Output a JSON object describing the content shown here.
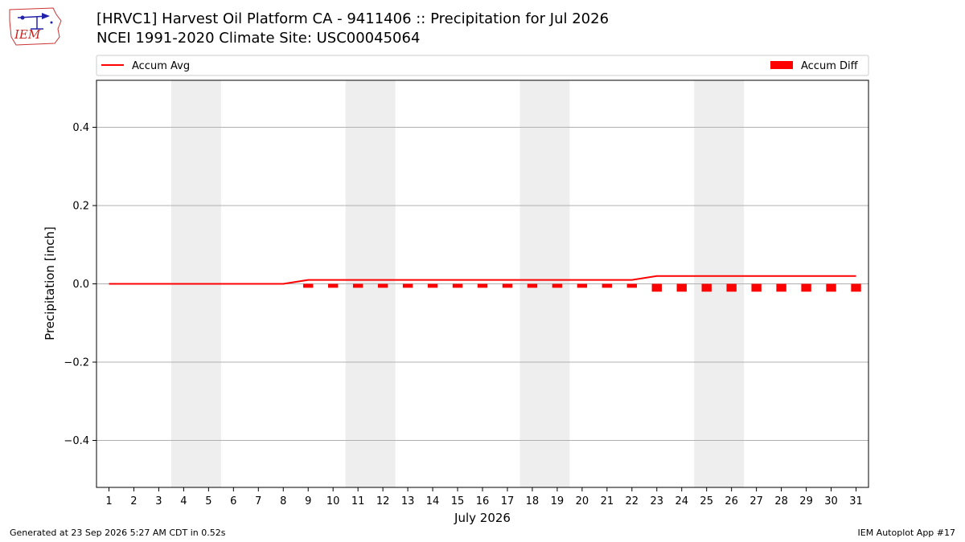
{
  "header": {
    "title_line1": "[HRVC1] Harvest Oil Platform  CA - 9411406 :: Precipitation for Jul 2026",
    "title_line2": "NCEI 1991-2020 Climate Site: USC00045064",
    "logo_text": "IEM"
  },
  "footer": {
    "generated": "Generated at 23 Sep 2026 5:27 AM CDT in 0.52s",
    "app": "IEM Autoplot App #17"
  },
  "colors": {
    "accum_avg": "#ff0000",
    "accum_diff": "#ff0000",
    "weekend_shade": "#eeeeee",
    "grid": "#b0b0b0"
  },
  "chart_data": {
    "type": "bar",
    "xlabel": "July 2026",
    "ylabel": "Precipitation [inch]",
    "ylim": [
      -0.52,
      0.52
    ],
    "xlim": [
      0.5,
      31.5
    ],
    "yticks": [
      -0.4,
      -0.2,
      0.0,
      0.2,
      0.4
    ],
    "ytick_labels": [
      "−0.4",
      "−0.2",
      "0.0",
      "0.2",
      "0.4"
    ],
    "x": [
      1,
      2,
      3,
      4,
      5,
      6,
      7,
      8,
      9,
      10,
      11,
      12,
      13,
      14,
      15,
      16,
      17,
      18,
      19,
      20,
      21,
      22,
      23,
      24,
      25,
      26,
      27,
      28,
      29,
      30,
      31
    ],
    "grid": "horizontal",
    "legend_placement": "top (above plot)",
    "weekend_shading": [
      [
        3.5,
        5.5
      ],
      [
        10.5,
        12.5
      ],
      [
        17.5,
        19.5
      ],
      [
        24.5,
        26.5
      ]
    ],
    "series": [
      {
        "name": "Accum Avg",
        "type": "line",
        "values": [
          0,
          0,
          0,
          0,
          0,
          0,
          0,
          0,
          0.01,
          0.01,
          0.01,
          0.01,
          0.01,
          0.01,
          0.01,
          0.01,
          0.01,
          0.01,
          0.01,
          0.01,
          0.01,
          0.01,
          0.02,
          0.02,
          0.02,
          0.02,
          0.02,
          0.02,
          0.02,
          0.02,
          0.02
        ]
      },
      {
        "name": "Accum Diff",
        "type": "bar",
        "values": [
          0,
          0,
          0,
          0,
          0,
          0,
          0,
          0,
          -0.01,
          -0.01,
          -0.01,
          -0.01,
          -0.01,
          -0.01,
          -0.01,
          -0.01,
          -0.01,
          -0.01,
          -0.01,
          -0.01,
          -0.01,
          -0.01,
          -0.02,
          -0.02,
          -0.02,
          -0.02,
          -0.02,
          -0.02,
          -0.02,
          -0.02,
          -0.02
        ]
      }
    ]
  }
}
